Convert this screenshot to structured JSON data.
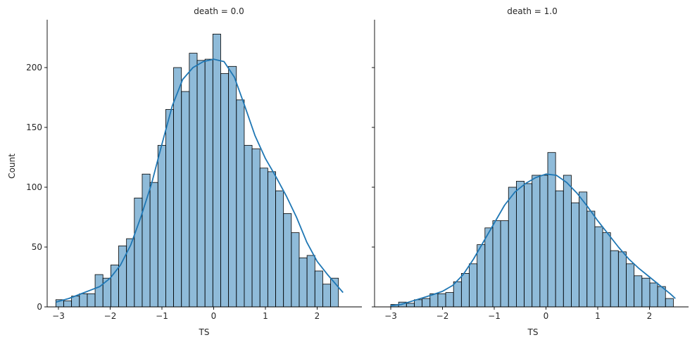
{
  "figure": {
    "ylabel": "Count",
    "panels": [
      {
        "title": "death = 0.0",
        "xlabel": "TS"
      },
      {
        "title": "death = 1.0",
        "xlabel": "TS"
      }
    ]
  },
  "chart_data": [
    {
      "type": "bar",
      "subtype": "histogram-with-kde",
      "title": "death = 0.0",
      "xlabel": "TS",
      "ylabel": "Count",
      "xlim": [
        -3.2,
        2.65
      ],
      "ylim": [
        0,
        240
      ],
      "xticks": [
        -3,
        -2,
        -1,
        0,
        1,
        2
      ],
      "xtick_labels": [
        "−3",
        "−2",
        "−1",
        "0",
        "1",
        "2"
      ],
      "yticks": [
        0,
        50,
        100,
        150,
        200
      ],
      "yticks_visible": true,
      "bin_start": -3.05,
      "bin_width": 0.1517,
      "values": [
        6,
        5,
        9,
        11,
        11,
        27,
        24,
        35,
        51,
        57,
        91,
        111,
        104,
        135,
        165,
        200,
        180,
        212,
        206,
        207,
        228,
        195,
        201,
        173,
        135,
        132,
        116,
        113,
        97,
        78,
        62,
        41,
        43,
        30,
        19,
        24
      ],
      "kde": {
        "x": [
          -3.05,
          -2.8,
          -2.5,
          -2.2,
          -2.0,
          -1.8,
          -1.6,
          -1.4,
          -1.2,
          -1.0,
          -0.8,
          -0.6,
          -0.4,
          -0.2,
          0.0,
          0.2,
          0.4,
          0.6,
          0.8,
          1.0,
          1.2,
          1.4,
          1.6,
          1.8,
          2.0,
          2.2,
          2.4,
          2.5
        ],
        "y": [
          4,
          7,
          12,
          17,
          24,
          35,
          52,
          76,
          103,
          136,
          168,
          190,
          200,
          205,
          207,
          205,
          192,
          168,
          143,
          124,
          109,
          93,
          75,
          54,
          38,
          27,
          17,
          12
        ]
      },
      "bar_color": "#1f77b4",
      "line_color": "#1f77b4",
      "grid": false
    },
    {
      "type": "bar",
      "subtype": "histogram-with-kde",
      "title": "death = 1.0",
      "xlabel": "TS",
      "ylim": [
        0,
        240
      ],
      "xlim": [
        -3.2,
        2.65
      ],
      "xticks": [
        -3,
        -2,
        -1,
        0,
        1,
        2
      ],
      "xtick_labels": [
        "−3",
        "−2",
        "−1",
        "0",
        "1",
        "2"
      ],
      "yticks": [
        0,
        50,
        100,
        150,
        200
      ],
      "yticks_visible": false,
      "bin_start": -3.0,
      "bin_width": 0.1517,
      "values": [
        2,
        4,
        3,
        6,
        7,
        11,
        11,
        12,
        21,
        28,
        36,
        52,
        66,
        72,
        72,
        100,
        105,
        103,
        110,
        110,
        129,
        97,
        110,
        87,
        96,
        80,
        67,
        62,
        47,
        46,
        36,
        26,
        24,
        20,
        17,
        7
      ],
      "kde": {
        "x": [
          -3.0,
          -2.8,
          -2.5,
          -2.2,
          -2.0,
          -1.8,
          -1.6,
          -1.4,
          -1.2,
          -1.0,
          -0.8,
          -0.6,
          -0.4,
          -0.2,
          0.0,
          0.2,
          0.4,
          0.6,
          0.8,
          1.0,
          1.2,
          1.4,
          1.6,
          1.8,
          2.0,
          2.2,
          2.4,
          2.5
        ],
        "y": [
          1,
          2,
          6,
          10,
          13,
          18,
          27,
          40,
          55,
          70,
          85,
          96,
          103,
          108,
          111,
          110,
          104,
          95,
          84,
          72,
          61,
          50,
          40,
          32,
          25,
          18,
          11,
          7
        ]
      },
      "bar_color": "#1f77b4",
      "line_color": "#1f77b4",
      "grid": false
    }
  ]
}
